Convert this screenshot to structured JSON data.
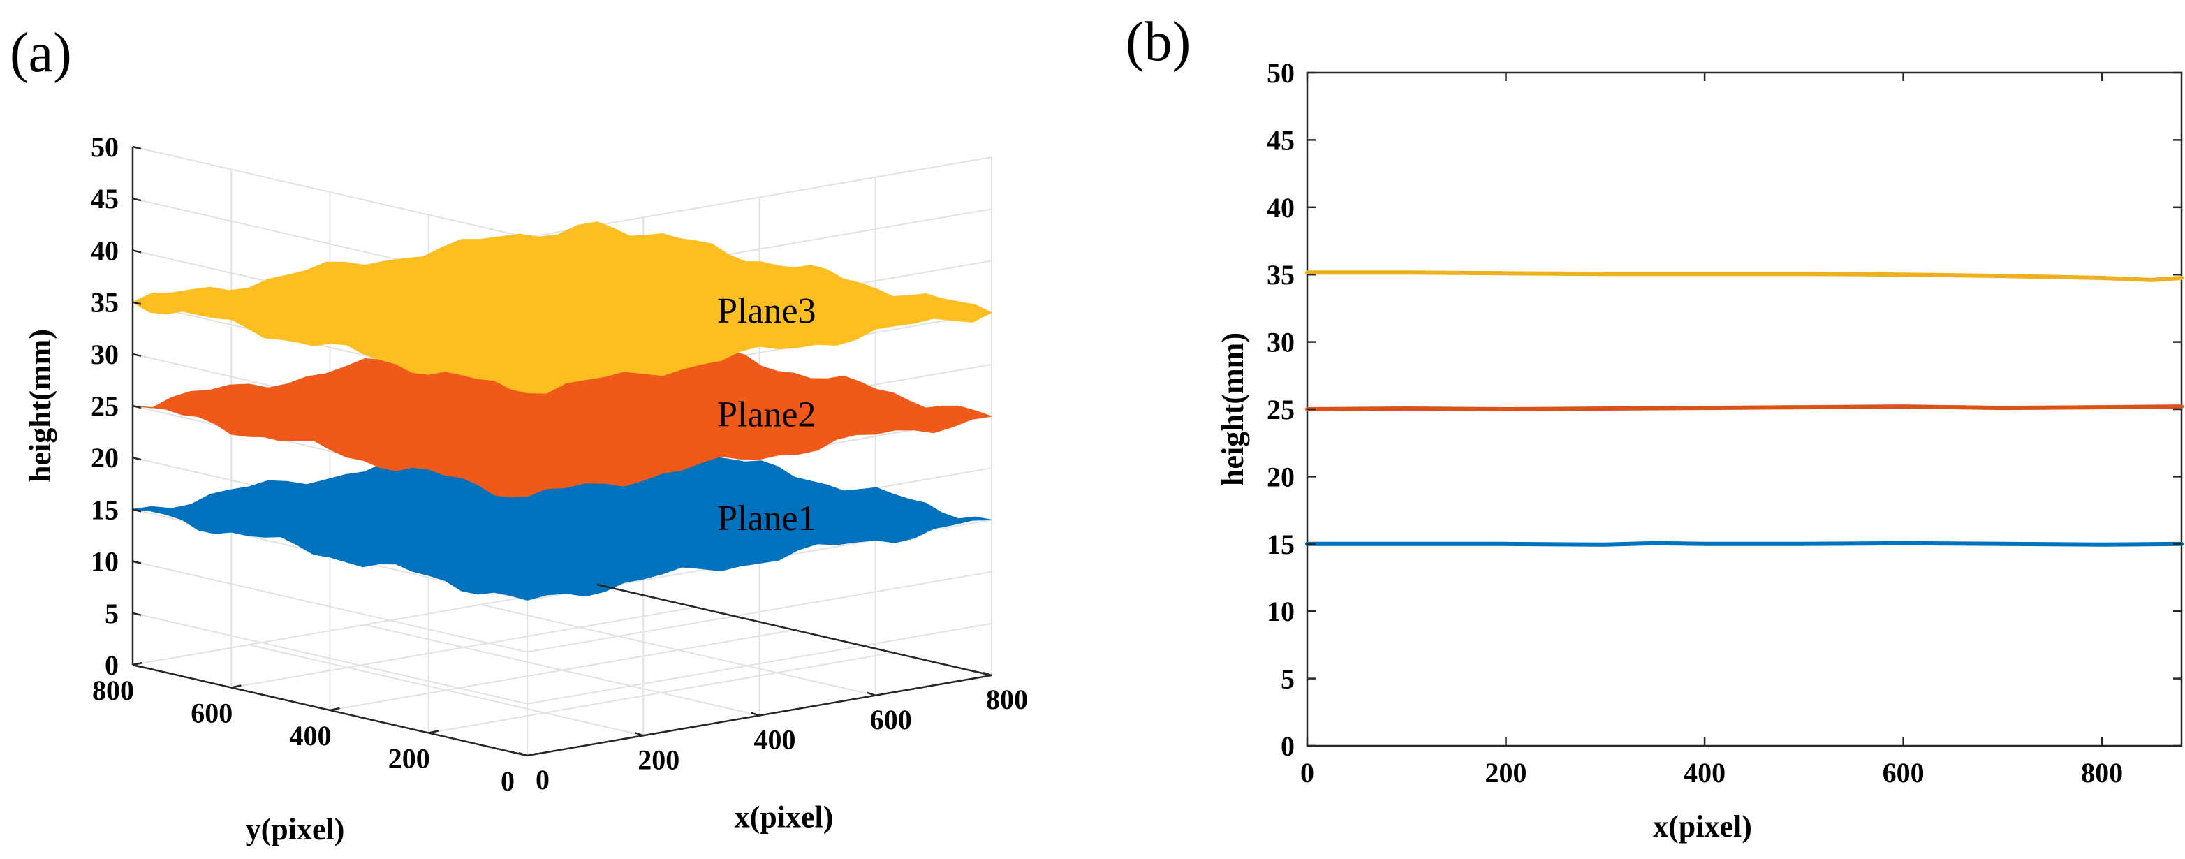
{
  "panels": {
    "a_label": "(a)",
    "b_label": "(b)"
  },
  "chart_data": [
    {
      "type": "surface",
      "panel": "(a)",
      "xlabel": "x(pixel)",
      "ylabel": "y(pixel)",
      "zlabel": "height(mm)",
      "xlim": [
        0,
        800
      ],
      "ylim": [
        0,
        800
      ],
      "zlim": [
        0,
        50
      ],
      "xticks": [
        0,
        200,
        400,
        600,
        800
      ],
      "yticks": [
        0,
        200,
        400,
        600,
        800
      ],
      "zticks": [
        0,
        5,
        10,
        15,
        20,
        25,
        30,
        35,
        40,
        45,
        50
      ],
      "grid": true,
      "surfaces": [
        {
          "name": "Plane1",
          "height": 15,
          "color": "#0072BD"
        },
        {
          "name": "Plane2",
          "height": 25,
          "color": "#EF5A1B"
        },
        {
          "name": "Plane3",
          "height": 35,
          "color": "#FDBE22"
        }
      ]
    },
    {
      "type": "line",
      "panel": "(b)",
      "xlabel": "x(pixel)",
      "ylabel": "height(mm)",
      "xlim": [
        0,
        880
      ],
      "ylim": [
        0,
        50
      ],
      "xticks": [
        0,
        200,
        400,
        600,
        800
      ],
      "yticks": [
        0,
        5,
        10,
        15,
        20,
        25,
        30,
        35,
        40,
        45,
        50
      ],
      "grid": false,
      "series": [
        {
          "color": "#0072BD",
          "x": [
            0,
            100,
            200,
            300,
            350,
            400,
            500,
            600,
            700,
            800,
            880
          ],
          "y": [
            15.0,
            15.0,
            15.0,
            14.95,
            15.05,
            15.0,
            15.0,
            15.05,
            15.0,
            14.95,
            15.0
          ]
        },
        {
          "color": "#D95319",
          "x": [
            0,
            100,
            200,
            300,
            400,
            500,
            600,
            700,
            800,
            880
          ],
          "y": [
            25.0,
            25.05,
            25.0,
            25.05,
            25.1,
            25.15,
            25.2,
            25.1,
            25.15,
            25.2
          ]
        },
        {
          "color": "#EDB120",
          "x": [
            0,
            100,
            200,
            300,
            400,
            500,
            600,
            700,
            800,
            850,
            880
          ],
          "y": [
            35.15,
            35.15,
            35.1,
            35.05,
            35.05,
            35.05,
            35.0,
            34.9,
            34.75,
            34.6,
            34.75
          ]
        }
      ]
    }
  ]
}
